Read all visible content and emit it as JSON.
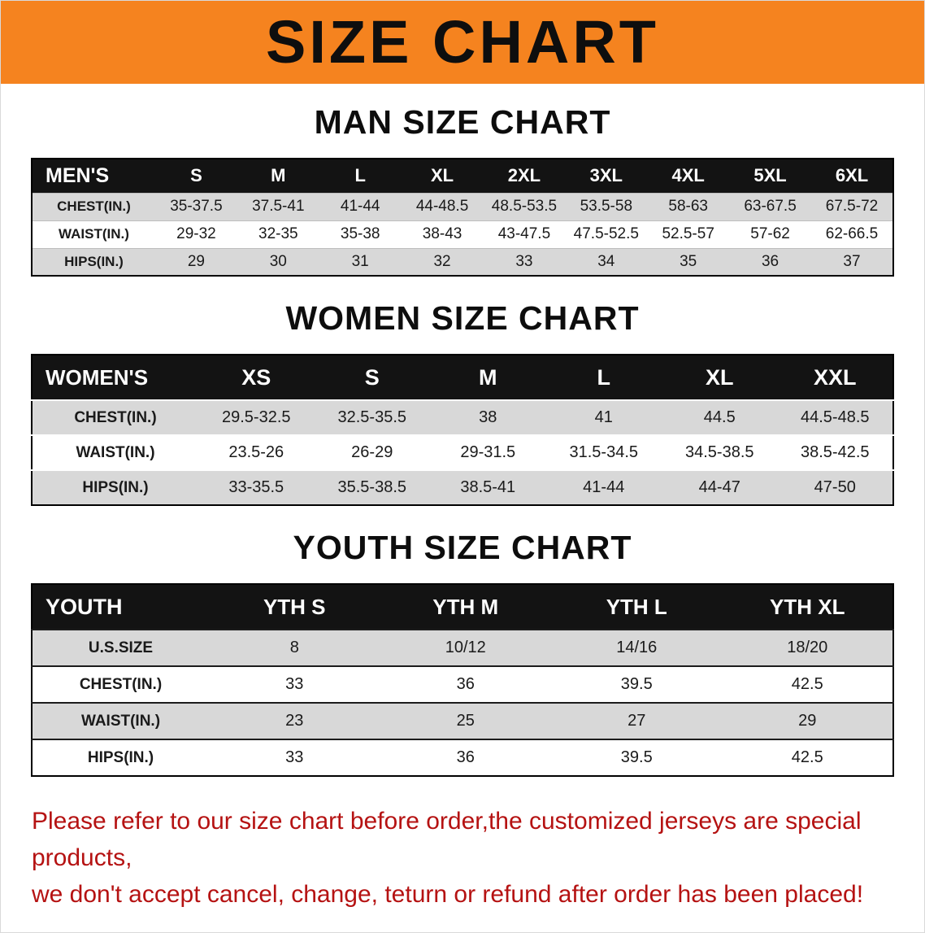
{
  "banner": {
    "title": "SIZE CHART"
  },
  "man": {
    "heading": "MAN SIZE CHART",
    "table": {
      "header": [
        "MEN'S",
        "S",
        "M",
        "L",
        "XL",
        "2XL",
        "3XL",
        "4XL",
        "5XL",
        "6XL"
      ],
      "rows": [
        [
          "CHEST(IN.)",
          "35-37.5",
          "37.5-41",
          "41-44",
          "44-48.5",
          "48.5-53.5",
          "53.5-58",
          "58-63",
          "63-67.5",
          "67.5-72"
        ],
        [
          "WAIST(IN.)",
          "29-32",
          "32-35",
          "35-38",
          "38-43",
          "43-47.5",
          "47.5-52.5",
          "52.5-57",
          "57-62",
          "62-66.5"
        ],
        [
          "HIPS(IN.)",
          "29",
          "30",
          "31",
          "32",
          "33",
          "34",
          "35",
          "36",
          "37"
        ]
      ]
    }
  },
  "women": {
    "heading": "WOMEN SIZE CHART",
    "table": {
      "header": [
        "WOMEN'S",
        "XS",
        "S",
        "M",
        "L",
        "XL",
        "XXL"
      ],
      "rows": [
        [
          "CHEST(IN.)",
          "29.5-32.5",
          "32.5-35.5",
          "38",
          "41",
          "44.5",
          "44.5-48.5"
        ],
        [
          "WAIST(IN.)",
          "23.5-26",
          "26-29",
          "29-31.5",
          "31.5-34.5",
          "34.5-38.5",
          "38.5-42.5"
        ],
        [
          "HIPS(IN.)",
          "33-35.5",
          "35.5-38.5",
          "38.5-41",
          "41-44",
          "44-47",
          "47-50"
        ]
      ]
    }
  },
  "youth": {
    "heading": "YOUTH SIZE CHART",
    "table": {
      "header": [
        "YOUTH",
        "YTH S",
        "YTH M",
        "YTH L",
        "YTH XL"
      ],
      "rows": [
        [
          "U.S.SIZE",
          "8",
          "10/12",
          "14/16",
          "18/20"
        ],
        [
          "CHEST(IN.)",
          "33",
          "36",
          "39.5",
          "42.5"
        ],
        [
          "WAIST(IN.)",
          "23",
          "25",
          "27",
          "29"
        ],
        [
          "HIPS(IN.)",
          "33",
          "36",
          "39.5",
          "42.5"
        ]
      ]
    }
  },
  "footer": {
    "line1": "Please refer to our size chart before order,the customized jerseys are special products,",
    "line2": "we don't accept cancel, change, teturn or refund after order has been placed!"
  },
  "colors": {
    "banner_orange": "#f5831f",
    "table_header_black": "#131313",
    "row_gray": "#d8d8d8",
    "footer_red": "#b51212"
  }
}
